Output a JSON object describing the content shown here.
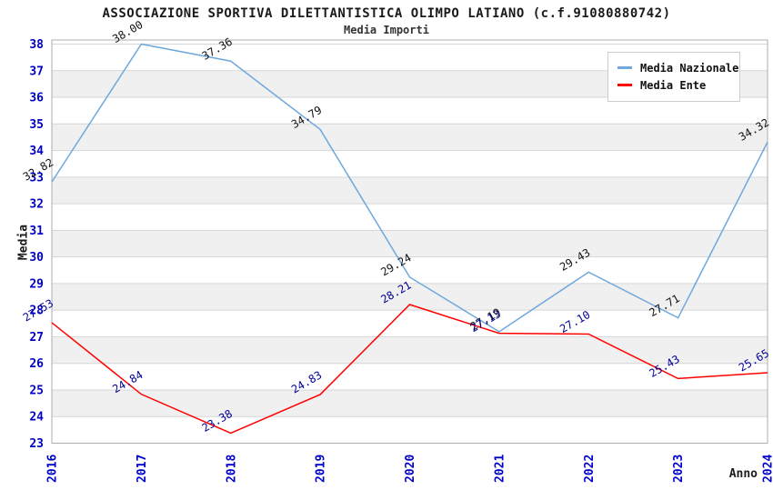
{
  "header": {
    "title": "ASSOCIAZIONE SPORTIVA DILETTANTISTICA OLIMPO LATIANO (c.f.91080880742)",
    "subtitle": "Media Importi"
  },
  "chart_data": {
    "type": "line",
    "title": "ASSOCIAZIONE SPORTIVA DILETTANTISTICA OLIMPO LATIANO (c.f.91080880742)",
    "subtitle": "Media Importi",
    "xlabel": "Anno",
    "ylabel": "Media",
    "categories": [
      "2016",
      "2017",
      "2018",
      "2019",
      "2020",
      "2021",
      "2022",
      "2023",
      "2024"
    ],
    "series": [
      {
        "name": "Media Nazionale",
        "color": "#6FA8DC",
        "label_color": "#111111",
        "values": [
          32.82,
          38.0,
          37.36,
          34.79,
          29.24,
          27.19,
          29.43,
          27.71,
          34.32
        ]
      },
      {
        "name": "Media Ente",
        "color": "#FF0000",
        "label_color": "#000099",
        "values": [
          27.53,
          24.84,
          23.38,
          24.83,
          28.21,
          27.13,
          27.1,
          25.43,
          25.65
        ]
      }
    ],
    "ylim": [
      23,
      38
    ],
    "ytick_step": 1,
    "yticks": [
      23,
      24,
      25,
      26,
      27,
      28,
      29,
      30,
      31,
      32,
      33,
      34,
      35,
      36,
      37,
      38
    ],
    "grid": "horizontal",
    "bands_alternating": true,
    "legend_position": "top-right",
    "colors": {
      "tick_label": "#0000CC",
      "band_gray": "#F0F0F0",
      "gridline": "#D6D6D6",
      "border": "#ADADAD",
      "background": "#FFFFFF"
    }
  }
}
